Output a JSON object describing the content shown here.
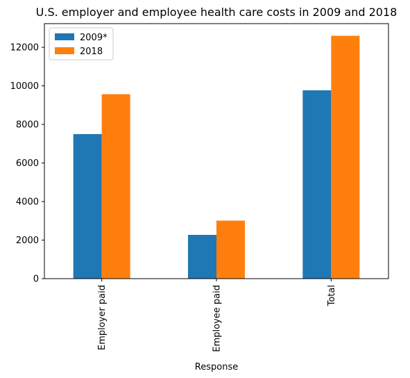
{
  "chart_data": {
    "type": "bar",
    "title": "U.S. employer and employee health care costs in 2009 and 2018",
    "xlabel": "Response",
    "ylabel": "",
    "categories": [
      "Employer paid",
      "Employee paid",
      "Total"
    ],
    "series": [
      {
        "name": "2009*",
        "values": [
          7500,
          2270,
          9770
        ],
        "color": "#1f77b4"
      },
      {
        "name": "2018",
        "values": [
          9570,
          3010,
          12600
        ],
        "color": "#ff7f0e"
      }
    ],
    "ylim": [
      0,
      13230
    ],
    "yticks": [
      0,
      2000,
      4000,
      6000,
      8000,
      10000,
      12000
    ],
    "legend": "top-left",
    "grid": false
  }
}
